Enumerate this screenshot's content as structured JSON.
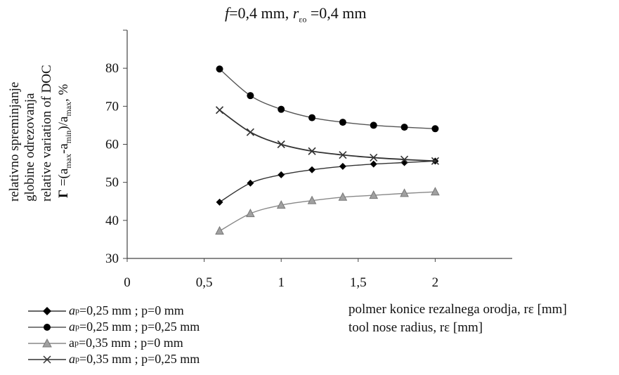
{
  "chart_data": {
    "type": "line",
    "title": "f=0,4 mm, rεo =0,4 mm",
    "title_parts": {
      "f": "f",
      "f_rest": "=0,4 mm, ",
      "r": "r",
      "r_sub": "εo",
      "r_rest": " =0,4 mm"
    },
    "ylabel_lines": [
      "relativno spreminjanje",
      "globine odrezovanja",
      "relative variation of DOC"
    ],
    "ylabel_formula": "Γ =(amax-amin)/amax, %",
    "ylabel_formula_parts": {
      "gamma": "Γ",
      "eq": " =(a",
      "max1": "max",
      "dash": "-a",
      "min": "min",
      "close": ")/a",
      "max2": "max",
      "tail": ",  %"
    },
    "xlabel_lines": [
      "polmer konice rezalnega orodja, rε [mm]",
      "tool nose radius, rε [mm]"
    ],
    "x_ticks": [
      "0",
      "0,5",
      "1",
      "1,5",
      "2"
    ],
    "y_ticks": [
      "30",
      "40",
      "50",
      "60",
      "70",
      "80"
    ],
    "xlim": [
      0,
      2.5
    ],
    "ylim": [
      30,
      90
    ],
    "x": [
      0.6,
      0.8,
      1.0,
      1.2,
      1.4,
      1.6,
      1.8,
      2.0
    ],
    "series": [
      {
        "name": "ap=0,25 mm ; p=0 mm",
        "name_parts": {
          "a": "a",
          "sub": "p",
          "rest": "=0,25 mm ; p=0 mm"
        },
        "marker": "diamond",
        "color": "#000000",
        "line": "#333333",
        "values": [
          44.8,
          49.8,
          52.0,
          53.3,
          54.2,
          54.8,
          55.2,
          55.6
        ]
      },
      {
        "name": "ap=0,25 mm ; p=0,25 mm",
        "name_parts": {
          "a": "a",
          "sub": "p",
          "rest": "=0,25 mm ; p=0,25 mm"
        },
        "marker": "circle",
        "color": "#000000",
        "line": "#555555",
        "values": [
          79.8,
          72.8,
          69.2,
          67.0,
          65.8,
          65.0,
          64.5,
          64.1
        ]
      },
      {
        "name": "ap=0,35 mm ; p=0 mm",
        "name_parts": {
          "a": "a",
          "sub": "p",
          "rest": "=0,35 mm ; p=0 mm"
        },
        "marker": "triangle",
        "color": "#a0a0a0",
        "line": "#888888",
        "values": [
          37.2,
          41.8,
          44.0,
          45.2,
          46.1,
          46.6,
          47.1,
          47.5
        ]
      },
      {
        "name": "ap=0,35 mm ; p=0,25 mm",
        "name_parts": {
          "a": "a",
          "sub": "p",
          "rest": "=0,35 mm ; p=0,25 mm"
        },
        "marker": "x",
        "color": "#333333",
        "line": "#333333",
        "values": [
          69.0,
          63.2,
          60.0,
          58.2,
          57.2,
          56.5,
          56.0,
          55.6
        ]
      }
    ]
  }
}
